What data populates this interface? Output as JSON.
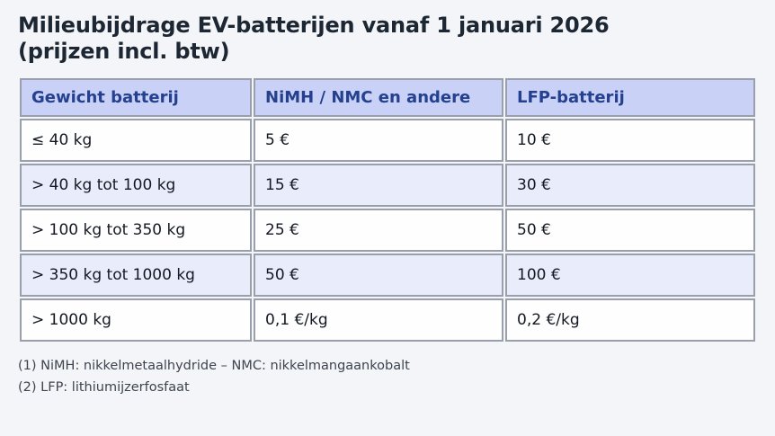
{
  "page": {
    "title_line1": "Milieubijdrage EV-batterijen vanaf 1 januari 2026",
    "title_line2": "(prijzen incl. btw)"
  },
  "table": {
    "columns": [
      "Gewicht batterij",
      "NiMH / NMC en andere",
      "LFP-batterij"
    ],
    "rows": [
      [
        "≤ 40 kg",
        "5 €",
        "10 €"
      ],
      [
        "> 40 kg tot 100 kg",
        "15 €",
        "30 €"
      ],
      [
        "> 100 kg tot 350 kg",
        "25 €",
        "50 €"
      ],
      [
        "> 350 kg tot 1000 kg",
        "50 €",
        "100 €"
      ],
      [
        "> 1000 kg",
        "0,1 €/kg",
        "0,2 €/kg"
      ]
    ]
  },
  "footnotes": [
    "(1) NiMH: nikkelmetaalhydride – NMC: nikkelmangaankobalt",
    "(2) LFP: lithiumijzerfosfaat"
  ],
  "colors": {
    "page_background": "#f4f5f8",
    "header_background": "#c9d2f6",
    "header_text": "#24408f",
    "alt_row_background": "#e9edfb",
    "row_background": "#fefefe",
    "border": "#99a0ab",
    "title_text": "#1d2733",
    "body_text": "#131822",
    "footnote_text": "#3d444e"
  }
}
